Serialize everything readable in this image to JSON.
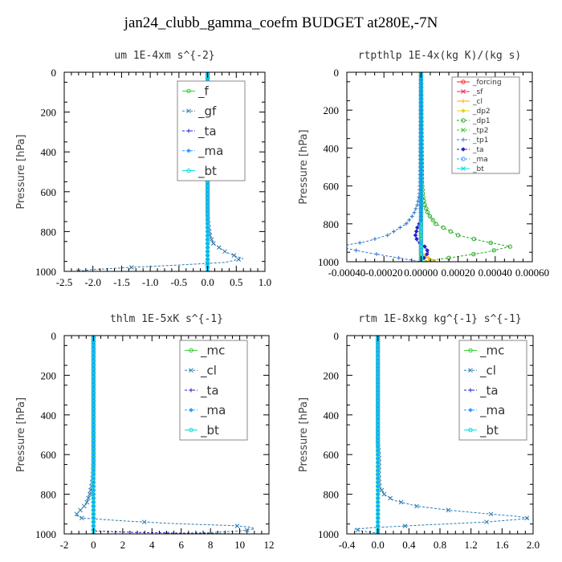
{
  "page": {
    "title": "jan24_clubb_gamma_coefm  BUDGET at280E,-7N"
  },
  "chart_data": [
    {
      "type": "line",
      "title": "um   1E-4xm s^{-2}",
      "ylabel": "Pressure [hPa]",
      "xlim": [
        -2.5,
        1.0
      ],
      "ylim": [
        1000,
        0
      ],
      "xticks": [
        -2.5,
        -2.0,
        -1.5,
        -1.0,
        -0.5,
        0.0,
        0.5,
        1.0
      ],
      "xtick_labels": [
        "-2.5",
        "-2.0",
        "-1.5",
        "-1.0",
        "-0.5",
        "0.0",
        "0.5",
        "1.0"
      ],
      "yticks": [
        0,
        200,
        400,
        600,
        800,
        1000
      ],
      "ytick_labels": [
        "0",
        "200",
        "400",
        "600",
        "800",
        "1000"
      ],
      "legend_position": "top-right",
      "legend_font": 15,
      "series": [
        {
          "name": "_f",
          "color": "#33cc33",
          "dashed": false,
          "points": [
            [
              0,
              0
            ],
            [
              0,
              1000
            ]
          ]
        },
        {
          "name": "_gf",
          "color": "#2a7ab0",
          "dashed": true,
          "points": [
            [
              0,
              0
            ],
            [
              0,
              700
            ],
            [
              0.01,
              760
            ],
            [
              0.04,
              820
            ],
            [
              0.1,
              860
            ],
            [
              0.3,
              900
            ],
            [
              0.5,
              925
            ],
            [
              0.62,
              935
            ],
            [
              0.3,
              955
            ],
            [
              -0.5,
              968
            ],
            [
              -1.2,
              978
            ],
            [
              -1.7,
              986
            ],
            [
              -2.05,
              992
            ],
            [
              -2.25,
              1000
            ]
          ]
        },
        {
          "name": "_ta",
          "color": "#2222cc",
          "dashed": true,
          "points": [
            [
              0,
              0
            ],
            [
              0,
              1000
            ]
          ]
        },
        {
          "name": "_ma",
          "color": "#3399ff",
          "dashed": true,
          "points": [
            [
              0,
              0
            ],
            [
              0,
              1000
            ]
          ]
        },
        {
          "name": "_bt",
          "color": "#00dddd",
          "dashed": false,
          "points": [
            [
              0,
              0
            ],
            [
              0,
              1000
            ]
          ]
        }
      ]
    },
    {
      "type": "line",
      "title": "rtpthlp   1E-4x(kg K)/(kg s)",
      "ylabel": "Pressure [hPa]",
      "xlim": [
        -0.0004,
        0.0006
      ],
      "ylim": [
        1000,
        0
      ],
      "xticks": [
        -0.0004,
        -0.0002,
        0.0,
        0.0002,
        0.0004,
        0.0006
      ],
      "xtick_labels": [
        "-0.00040",
        "-0.00020",
        "0.00000",
        "0.00020",
        "0.00040",
        "0.00060"
      ],
      "yticks": [
        0,
        200,
        400,
        600,
        800,
        1000
      ],
      "ytick_labels": [
        "0",
        "200",
        "400",
        "600",
        "800",
        "1000"
      ],
      "legend_position": "top-right",
      "legend_font": 9,
      "series": [
        {
          "name": "_forcing",
          "color": "#ff2222",
          "dashed": false,
          "points": [
            [
              0,
              0
            ],
            [
              0,
              1000
            ]
          ]
        },
        {
          "name": "_sf",
          "color": "#dd3355",
          "dashed": false,
          "points": [
            [
              0,
              0
            ],
            [
              0,
              1000
            ]
          ]
        },
        {
          "name": "_cl",
          "color": "#ffaa00",
          "dashed": false,
          "points": [
            [
              0,
              0
            ],
            [
              0,
              950
            ],
            [
              2e-05,
              970
            ],
            [
              5e-05,
              985
            ],
            [
              8e-05,
              995
            ],
            [
              4e-05,
              1000
            ]
          ]
        },
        {
          "name": "_dp2",
          "color": "#dddd00",
          "dashed": false,
          "points": [
            [
              0,
              0
            ],
            [
              0,
              980
            ],
            [
              3e-05,
              995
            ],
            [
              0,
              1000
            ]
          ]
        },
        {
          "name": "_dp1",
          "color": "#22aa22",
          "dashed": true,
          "points": [
            [
              0,
              0
            ],
            [
              5e-06,
              580
            ],
            [
              1e-05,
              650
            ],
            [
              2e-05,
              700
            ],
            [
              4e-05,
              750
            ],
            [
              8e-05,
              800
            ],
            [
              0.0002,
              860
            ],
            [
              0.00035,
              895
            ],
            [
              0.00048,
              920
            ],
            [
              0.00035,
              950
            ],
            [
              0.00015,
              980
            ],
            [
              0,
              1000
            ]
          ]
        },
        {
          "name": "_tp2",
          "color": "#33cc33",
          "dashed": true,
          "points": [
            [
              0,
              0
            ],
            [
              0,
              1000
            ]
          ]
        },
        {
          "name": "_tp1",
          "color": "#3377cc",
          "dashed": true,
          "points": [
            [
              0,
              0
            ],
            [
              -5e-06,
              580
            ],
            [
              -1e-05,
              650
            ],
            [
              -2e-05,
              700
            ],
            [
              -4e-05,
              750
            ],
            [
              -8e-05,
              800
            ],
            [
              -0.00018,
              860
            ],
            [
              -0.0003,
              895
            ],
            [
              -0.00045,
              920
            ],
            [
              -0.0003,
              950
            ],
            [
              -0.00012,
              980
            ],
            [
              0,
              1000
            ]
          ]
        },
        {
          "name": "_ta",
          "color": "#2222cc",
          "dashed": true,
          "points": [
            [
              0,
              0
            ],
            [
              0,
              780
            ],
            [
              -2e-05,
              820
            ],
            [
              -3e-05,
              860
            ],
            [
              -2e-05,
              890
            ],
            [
              2e-05,
              920
            ],
            [
              4e-05,
              950
            ],
            [
              2e-05,
              975
            ],
            [
              0,
              1000
            ]
          ]
        },
        {
          "name": "_ma",
          "color": "#3399ff",
          "dashed": true,
          "points": [
            [
              0,
              0
            ],
            [
              0,
              1000
            ]
          ]
        },
        {
          "name": "_bt",
          "color": "#00dddd",
          "dashed": false,
          "points": [
            [
              0,
              0
            ],
            [
              0,
              1000
            ]
          ]
        }
      ]
    },
    {
      "type": "line",
      "title": "thlm   1E-5xK s^{-1}",
      "ylabel": "Pressure [hPa]",
      "xlim": [
        -2,
        12
      ],
      "ylim": [
        1000,
        0
      ],
      "xticks": [
        -2,
        0,
        2,
        4,
        6,
        8,
        10,
        12
      ],
      "xtick_labels": [
        "-2",
        "0",
        "2",
        "4",
        "6",
        "8",
        "10",
        "12"
      ],
      "yticks": [
        0,
        200,
        400,
        600,
        800,
        1000
      ],
      "ytick_labels": [
        "0",
        "200",
        "400",
        "600",
        "800",
        "1000"
      ],
      "legend_position": "top-right",
      "legend_font": 15,
      "series": [
        {
          "name": "_mc",
          "color": "#33cc33",
          "dashed": false,
          "points": [
            [
              0,
              0
            ],
            [
              0,
              1000
            ]
          ]
        },
        {
          "name": "_cl",
          "color": "#2a7ab0",
          "dashed": true,
          "points": [
            [
              0,
              0
            ],
            [
              0,
              640
            ],
            [
              -0.03,
              700
            ],
            [
              -0.1,
              750
            ],
            [
              -0.25,
              800
            ],
            [
              -0.5,
              850
            ],
            [
              -0.9,
              880
            ],
            [
              -1.2,
              905
            ],
            [
              -0.8,
              920
            ],
            [
              2.2,
              935
            ],
            [
              5.5,
              948
            ],
            [
              9.5,
              958
            ],
            [
              10.8,
              966
            ],
            [
              11.0,
              975
            ],
            [
              10.0,
              985
            ],
            [
              8.0,
              993
            ],
            [
              5.0,
              1000
            ]
          ]
        },
        {
          "name": "_ta",
          "color": "#2222cc",
          "dashed": true,
          "points": [
            [
              0,
              0
            ],
            [
              0,
              985
            ],
            [
              3,
              993
            ],
            [
              8,
              998
            ],
            [
              10,
              1000
            ]
          ]
        },
        {
          "name": "_ma",
          "color": "#3399ff",
          "dashed": true,
          "points": [
            [
              0,
              0
            ],
            [
              0,
              1000
            ]
          ]
        },
        {
          "name": "_bt",
          "color": "#00dddd",
          "dashed": false,
          "points": [
            [
              0,
              0
            ],
            [
              0,
              1000
            ]
          ]
        }
      ]
    },
    {
      "type": "line",
      "title": "rtm   1E-8xkg kg^{-1} s^{-1}",
      "ylabel": "Pressure [hPa]",
      "xlim": [
        -0.4,
        2.0
      ],
      "ylim": [
        1000,
        0
      ],
      "xticks": [
        -0.4,
        0.0,
        0.4,
        0.8,
        1.2,
        1.6,
        2.0
      ],
      "xtick_labels": [
        "-0.4",
        "0.0",
        "0.4",
        "0.8",
        "1.2",
        "1.6",
        "2.0"
      ],
      "yticks": [
        0,
        200,
        400,
        600,
        800,
        1000
      ],
      "ytick_labels": [
        "0",
        "200",
        "400",
        "600",
        "800",
        "1000"
      ],
      "legend_position": "top-right",
      "legend_font": 15,
      "series": [
        {
          "name": "_mc",
          "color": "#33cc33",
          "dashed": false,
          "points": [
            [
              0,
              0
            ],
            [
              0,
              1000
            ]
          ]
        },
        {
          "name": "_cl",
          "color": "#2a7ab0",
          "dashed": true,
          "points": [
            [
              0,
              0
            ],
            [
              0,
              540
            ],
            [
              0.01,
              590
            ],
            [
              0.015,
              640
            ],
            [
              0.01,
              700
            ],
            [
              0.02,
              760
            ],
            [
              0.08,
              800
            ],
            [
              0.2,
              830
            ],
            [
              0.5,
              860
            ],
            [
              0.95,
              882
            ],
            [
              1.4,
              898
            ],
            [
              1.8,
              912
            ],
            [
              1.95,
              922
            ],
            [
              1.4,
              940
            ],
            [
              0.6,
              955
            ],
            [
              -0.05,
              968
            ],
            [
              -0.3,
              976
            ],
            [
              -0.2,
              986
            ],
            [
              -0.05,
              994
            ],
            [
              0,
              1000
            ]
          ]
        },
        {
          "name": "_ta",
          "color": "#2222cc",
          "dashed": true,
          "points": [
            [
              0,
              0
            ],
            [
              0,
              1000
            ]
          ]
        },
        {
          "name": "_ma",
          "color": "#3399ff",
          "dashed": true,
          "points": [
            [
              0,
              0
            ],
            [
              0,
              1000
            ]
          ]
        },
        {
          "name": "_bt",
          "color": "#00dddd",
          "dashed": false,
          "points": [
            [
              0,
              0
            ],
            [
              0,
              1000
            ]
          ]
        }
      ]
    }
  ]
}
